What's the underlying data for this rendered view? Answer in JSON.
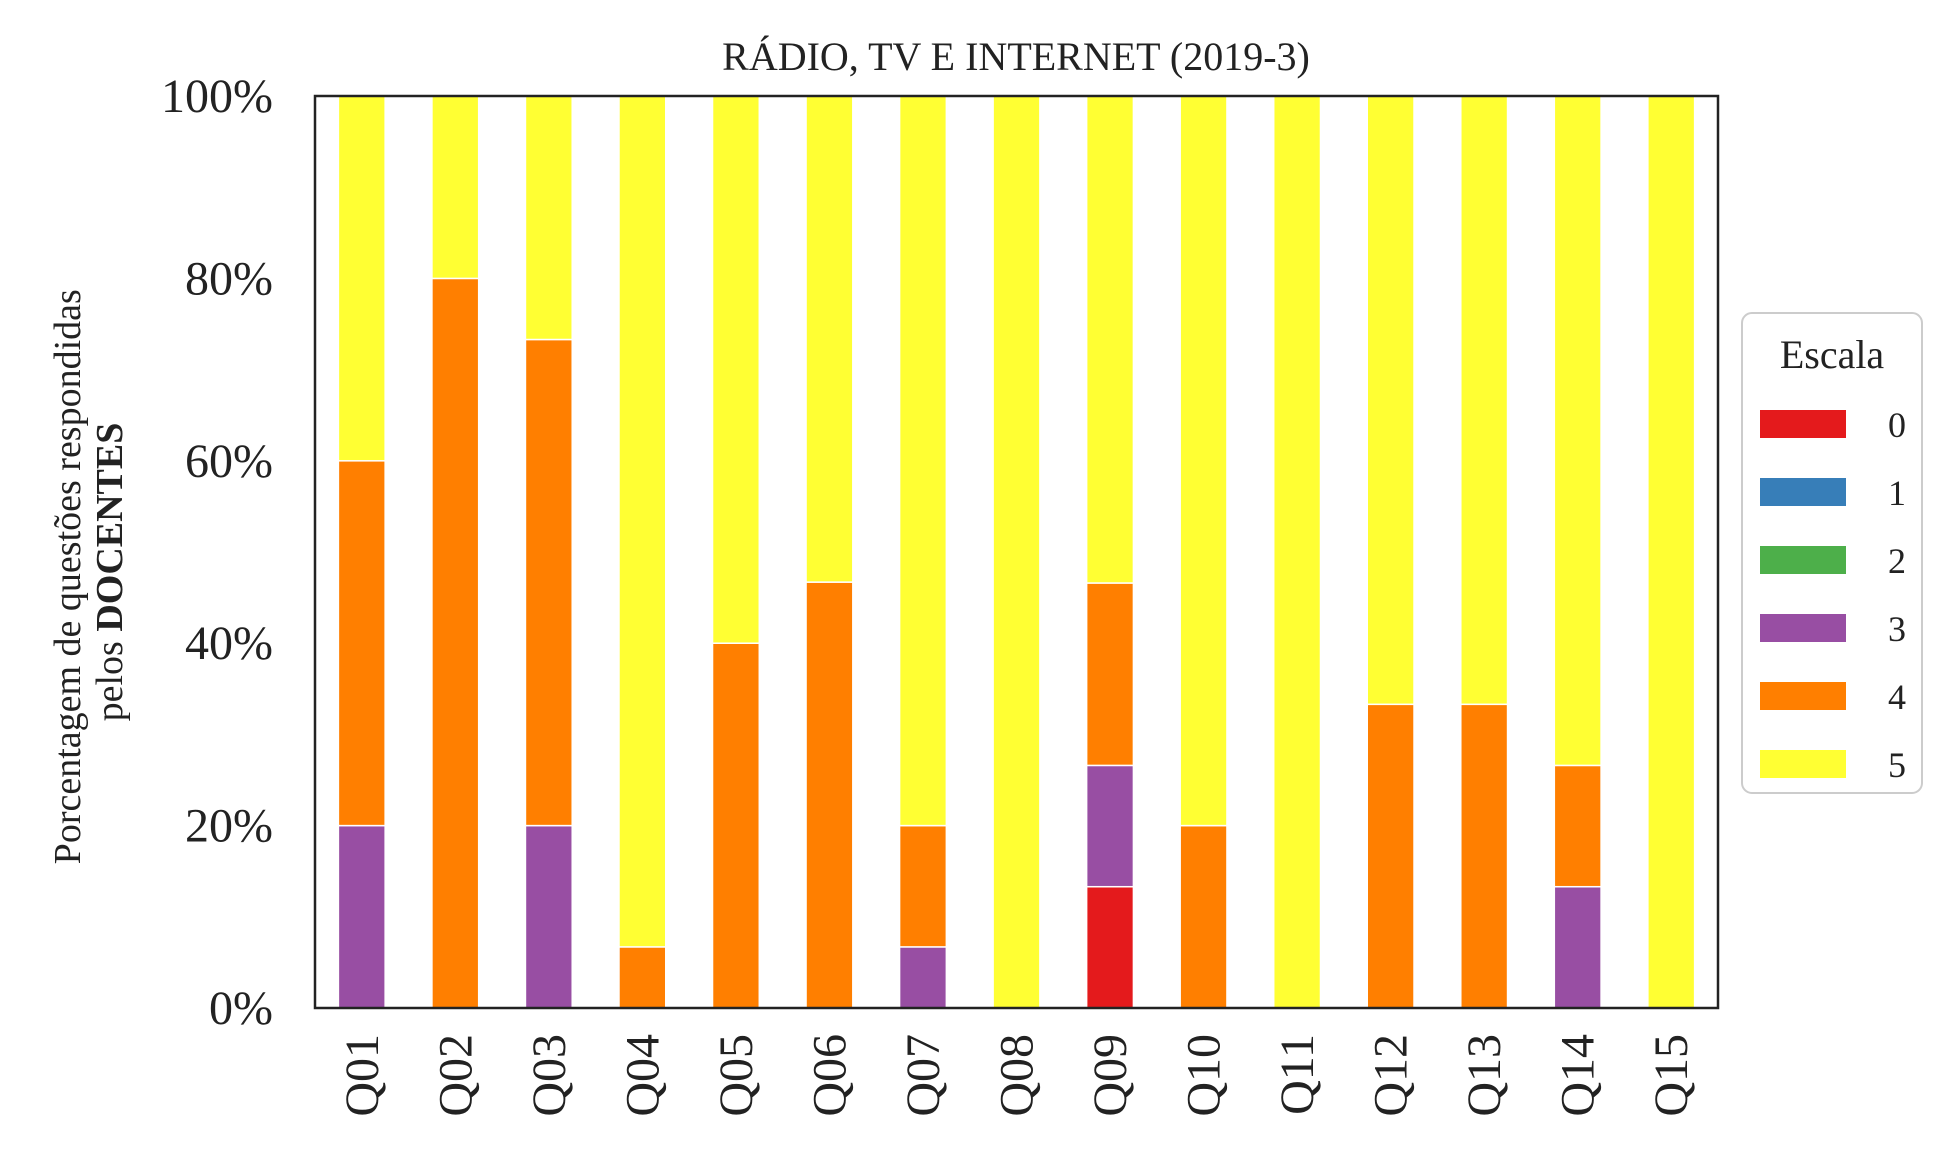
{
  "chart_data": {
    "type": "bar",
    "stacked": true,
    "title": "RÁDIO, TV E INTERNET (2019-3)",
    "ylabel_line1": "Porcentagem de questões respondidas",
    "ylabel_line2_prefix": "pelos ",
    "ylabel_line2_bold": "DOCENTES",
    "xlabel": "",
    "ylim": [
      0,
      100
    ],
    "yticks": [
      0,
      20,
      40,
      60,
      80,
      100
    ],
    "ytick_labels": [
      "0%",
      "20%",
      "40%",
      "60%",
      "80%",
      "100%"
    ],
    "grid": false,
    "legend": {
      "title": "Escala",
      "placement": "right"
    },
    "categories": [
      "Q01",
      "Q02",
      "Q03",
      "Q04",
      "Q05",
      "Q06",
      "Q07",
      "Q08",
      "Q09",
      "Q10",
      "Q11",
      "Q12",
      "Q13",
      "Q14",
      "Q15"
    ],
    "series": [
      {
        "name": "0",
        "color": "#e41a1c",
        "values": [
          0,
          0,
          0,
          0,
          0,
          0,
          0,
          0,
          13.3,
          0,
          0,
          0,
          0,
          0,
          0
        ]
      },
      {
        "name": "1",
        "color": "#377eb8",
        "values": [
          0,
          0,
          0,
          0,
          0,
          0,
          0,
          0,
          0,
          0,
          0,
          0,
          0,
          0,
          0
        ]
      },
      {
        "name": "2",
        "color": "#4daf4a",
        "values": [
          0,
          0,
          0,
          0,
          0,
          0,
          0,
          0,
          0,
          0,
          0,
          0,
          0,
          0,
          0
        ]
      },
      {
        "name": "3",
        "color": "#984ea3",
        "values": [
          20,
          0,
          20,
          0,
          0,
          0,
          6.7,
          0,
          13.3,
          0,
          0,
          0,
          0,
          13.3,
          0
        ]
      },
      {
        "name": "4",
        "color": "#ff7f00",
        "values": [
          40,
          80,
          53.3,
          6.7,
          40,
          46.7,
          13.3,
          0,
          20,
          20,
          0,
          33.3,
          33.3,
          13.3,
          0
        ]
      },
      {
        "name": "5",
        "color": "#ffff33",
        "values": [
          40,
          20,
          26.7,
          93.3,
          60,
          53.3,
          80,
          100,
          53.4,
          80,
          100,
          66.7,
          66.7,
          73.4,
          100
        ]
      }
    ]
  }
}
